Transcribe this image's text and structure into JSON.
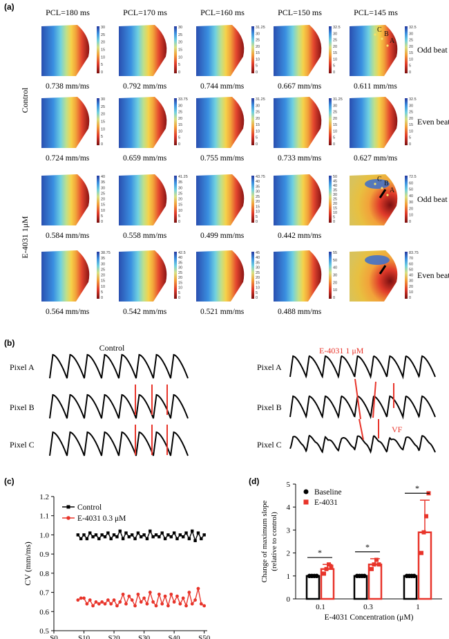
{
  "panel_a": {
    "label": "(a)",
    "pcl": [
      "PCL=180 ms",
      "PCL=170 ms",
      "PCL=160 ms",
      "PCL=150 ms",
      "PCL=145 ms"
    ],
    "groups": [
      "Control",
      "E-4031 1μM"
    ],
    "beats": [
      "Odd beat",
      "Even beat",
      "Odd beat",
      "Even beat"
    ],
    "cv_rows": [
      [
        "0.738 mm/ms",
        "0.792 mm/ms",
        "0.744 mm/ms",
        "0.667 mm/ms",
        "0.611 mm/ms"
      ],
      [
        "0.724 mm/ms",
        "0.659 mm/ms",
        "0.755 mm/ms",
        "0.733 mm/ms",
        "0.627 mm/ms"
      ],
      [
        "0.584 mm/ms",
        "0.558 mm/ms",
        "0.499 mm/ms",
        "0.442 mm/ms",
        ""
      ],
      [
        "0.564 mm/ms",
        "0.542 mm/ms",
        "0.521 mm/ms",
        "0.488 mm/ms",
        ""
      ]
    ],
    "scale_max": [
      [
        "30",
        "30",
        "31.25",
        "32.5",
        "32.5"
      ],
      [
        "30",
        "33.75",
        "31.25",
        "31.25",
        "32.5"
      ],
      [
        "40",
        "41.25",
        "43.75",
        "50",
        "72.5"
      ],
      [
        "38.75",
        "42.5",
        "45",
        "55",
        "83.75"
      ]
    ],
    "scale_ticks": [
      [
        [
          "25",
          "20",
          "15",
          "10",
          "5",
          "0"
        ],
        [
          "25",
          "20",
          "15",
          "10",
          "5",
          "0"
        ],
        [
          "30",
          "25",
          "20",
          "15",
          "10",
          "5",
          "0"
        ],
        [
          "30",
          "25",
          "20",
          "15",
          "10",
          "5",
          "0"
        ],
        [
          "30",
          "25",
          "20",
          "15",
          "10",
          "5",
          "0"
        ]
      ],
      [
        [
          "25",
          "20",
          "15",
          "10",
          "5",
          "0"
        ],
        [
          "30",
          "25",
          "20",
          "15",
          "10",
          "5",
          "0"
        ],
        [
          "30",
          "25",
          "20",
          "15",
          "10",
          "5",
          "0"
        ],
        [
          "30",
          "25",
          "20",
          "15",
          "10",
          "5",
          "0"
        ],
        [
          "30",
          "25",
          "20",
          "15",
          "10",
          "5",
          "0"
        ]
      ],
      [
        [
          "35",
          "30",
          "25",
          "20",
          "15",
          "10",
          "5",
          "0"
        ],
        [
          "35",
          "30",
          "25",
          "20",
          "15",
          "10",
          "5",
          "0"
        ],
        [
          "40",
          "35",
          "30",
          "25",
          "20",
          "15",
          "10",
          "5",
          "0"
        ],
        [
          "45",
          "40",
          "35",
          "30",
          "25",
          "20",
          "15",
          "10",
          "5",
          "0"
        ],
        [
          "60",
          "50",
          "40",
          "30",
          "20",
          "10",
          "0"
        ]
      ],
      [
        [
          "35",
          "30",
          "25",
          "20",
          "15",
          "10",
          "5",
          "0"
        ],
        [
          "40",
          "35",
          "30",
          "25",
          "20",
          "15",
          "10",
          "5",
          "0"
        ],
        [
          "40",
          "35",
          "30",
          "25",
          "20",
          "15",
          "10",
          "5",
          "0"
        ],
        [
          "50",
          "40",
          "30",
          "20",
          "10",
          "0"
        ],
        [
          "70",
          "60",
          "50",
          "40",
          "30",
          "20",
          "10",
          "0"
        ]
      ]
    ],
    "pixel_letters": [
      "A",
      "B",
      "C"
    ]
  },
  "panel_b": {
    "label": "(b)",
    "left_title": "Control",
    "right_title": "E-4031 1 μM",
    "rows": [
      "Pixel A",
      "Pixel B",
      "Pixel C"
    ],
    "vf_label": "VF"
  },
  "panel_c": {
    "label": "(c)",
    "legend": [
      "Control",
      "E-4031 0.3 μM"
    ]
  },
  "panel_d": {
    "label": "(d)",
    "legend": [
      "Baseline",
      "E-4031"
    ],
    "significance": "*"
  },
  "chart_data": [
    {
      "type": "line",
      "panel": "(c)",
      "xlabel": "",
      "ylabel": "CV (mm/ms)",
      "ylim": [
        0.5,
        1.2
      ],
      "yticks": [
        "0.5",
        "0.6",
        "0.7",
        "0.8",
        "0.9",
        "1.0",
        "1.1",
        "1.2"
      ],
      "xticks": [
        "S0",
        "S10",
        "S20",
        "S30",
        "S40",
        "S50"
      ],
      "xlim": [
        0,
        51
      ],
      "grid": false,
      "legend_position": "top-left",
      "series": [
        {
          "name": "Control",
          "color": "#000000",
          "x": [
            8,
            9,
            10,
            11,
            12,
            13,
            14,
            15,
            16,
            17,
            18,
            19,
            20,
            21,
            22,
            23,
            24,
            25,
            26,
            27,
            28,
            29,
            30,
            31,
            32,
            33,
            34,
            35,
            36,
            37,
            38,
            39,
            40,
            41,
            42,
            43,
            44,
            45,
            46,
            47,
            48,
            49,
            50
          ],
          "values": [
            1.0,
            0.98,
            1.0,
            0.98,
            1.01,
            0.99,
            1.0,
            0.98,
            1.0,
            0.99,
            1.01,
            0.98,
            1.0,
            0.99,
            1.02,
            0.98,
            1.01,
            0.99,
            1.0,
            0.98,
            1.01,
            0.99,
            1.0,
            0.98,
            1.02,
            0.99,
            1.0,
            0.99,
            1.01,
            0.98,
            1.0,
            0.99,
            1.01,
            0.98,
            1.0,
            0.99,
            1.01,
            0.98,
            1.02,
            0.97,
            1.01,
            0.98,
            1.0
          ]
        },
        {
          "name": "E-4031 0.3 μM",
          "color": "#e8342a",
          "x": [
            8,
            9,
            10,
            11,
            12,
            13,
            14,
            15,
            16,
            17,
            18,
            19,
            20,
            21,
            22,
            23,
            24,
            25,
            26,
            27,
            28,
            29,
            30,
            31,
            32,
            33,
            34,
            35,
            36,
            37,
            38,
            39,
            40,
            41,
            42,
            43,
            44,
            45,
            46,
            47,
            48,
            49,
            50
          ],
          "values": [
            0.66,
            0.67,
            0.67,
            0.64,
            0.66,
            0.63,
            0.65,
            0.64,
            0.65,
            0.64,
            0.66,
            0.64,
            0.66,
            0.63,
            0.65,
            0.69,
            0.64,
            0.68,
            0.66,
            0.63,
            0.69,
            0.65,
            0.67,
            0.64,
            0.7,
            0.65,
            0.63,
            0.69,
            0.64,
            0.68,
            0.63,
            0.69,
            0.65,
            0.68,
            0.64,
            0.67,
            0.63,
            0.7,
            0.64,
            0.66,
            0.72,
            0.64,
            0.63
          ]
        }
      ]
    },
    {
      "type": "bar",
      "panel": "(d)",
      "xlabel": "E-4031 Concentration (μM)",
      "ylabel": "Change of maximum slope\n(relative to control)",
      "ylim": [
        0,
        5
      ],
      "yticks": [
        "0",
        "1",
        "2",
        "3",
        "4",
        "5"
      ],
      "categories": [
        "0.1",
        "0.3",
        "1"
      ],
      "legend_position": "top-left",
      "series": [
        {
          "name": "Baseline",
          "color": "#000000",
          "values": [
            1.0,
            1.0,
            1.0
          ],
          "error": [
            0,
            0,
            0
          ],
          "points": [
            [
              1,
              1,
              1,
              1
            ],
            [
              1,
              1,
              1,
              1
            ],
            [
              1,
              1,
              1,
              1
            ]
          ]
        },
        {
          "name": "E-4031",
          "color": "#e8342a",
          "values": [
            1.3,
            1.5,
            2.9
          ],
          "error": [
            0.2,
            0.25,
            1.4
          ],
          "points": [
            [
              1.1,
              1.3,
              1.5,
              1.4
            ],
            [
              1.3,
              1.5,
              1.7,
              1.5
            ],
            [
              2.0,
              2.9,
              3.6,
              4.6
            ]
          ]
        }
      ],
      "significance": [
        "*",
        "*",
        "*"
      ]
    }
  ]
}
